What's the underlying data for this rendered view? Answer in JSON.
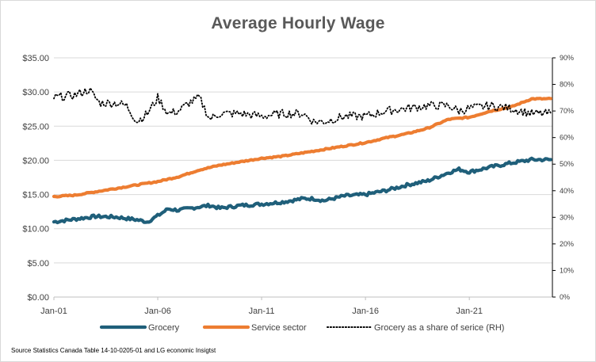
{
  "chart_data": {
    "type": "line",
    "title": "Average Hourly Wage",
    "x_tick_labels": [
      "Jan-01",
      "Jan-06",
      "Jan-11",
      "Jan-16",
      "Jan-21"
    ],
    "x_range": [
      "Jan-01",
      "Dec-24"
    ],
    "y_left": {
      "ticks": [
        "$0.00",
        "$5.00",
        "$10.00",
        "$15.00",
        "$20.00",
        "$25.00",
        "$30.00",
        "$35.00"
      ],
      "ylim": [
        0,
        35
      ]
    },
    "y_right": {
      "ticks": [
        "0%",
        "10%",
        "20%",
        "30%",
        "40%",
        "50%",
        "60%",
        "70%",
        "80%",
        "90%"
      ],
      "ylim": [
        0,
        90
      ]
    },
    "series": [
      {
        "name": "Grocery",
        "axis": "left",
        "color": "#1f5f7a",
        "style": "solid",
        "points": [
          [
            2001,
            11.0
          ],
          [
            2002,
            11.4
          ],
          [
            2003,
            11.8
          ],
          [
            2004,
            11.7
          ],
          [
            2005,
            11.3
          ],
          [
            2005.5,
            11.0
          ],
          [
            2006,
            11.9
          ],
          [
            2006.5,
            12.9
          ],
          [
            2007,
            12.7
          ],
          [
            2008,
            13.2
          ],
          [
            2008.5,
            13.4
          ],
          [
            2009,
            13.0
          ],
          [
            2010,
            13.4
          ],
          [
            2011,
            13.6
          ],
          [
            2012,
            13.9
          ],
          [
            2013,
            14.4
          ],
          [
            2013.5,
            14.4
          ],
          [
            2014,
            14.1
          ],
          [
            2015,
            14.8
          ],
          [
            2016,
            15.0
          ],
          [
            2017,
            15.6
          ],
          [
            2018,
            16.4
          ],
          [
            2019,
            17.0
          ],
          [
            2020,
            18.2
          ],
          [
            2020.5,
            18.7
          ],
          [
            2021,
            18.3
          ],
          [
            2022,
            19.0
          ],
          [
            2023,
            19.6
          ],
          [
            2024,
            20.1
          ]
        ]
      },
      {
        "name": "Service sector",
        "axis": "left",
        "color": "#ed7d31",
        "style": "solid",
        "points": [
          [
            2001,
            14.7
          ],
          [
            2002,
            14.9
          ],
          [
            2003,
            15.4
          ],
          [
            2004,
            15.9
          ],
          [
            2005,
            16.4
          ],
          [
            2006,
            16.9
          ],
          [
            2007,
            17.6
          ],
          [
            2008,
            18.6
          ],
          [
            2009,
            19.3
          ],
          [
            2010,
            19.8
          ],
          [
            2011,
            20.3
          ],
          [
            2012,
            20.6
          ],
          [
            2013,
            21.1
          ],
          [
            2014,
            21.6
          ],
          [
            2015,
            22.1
          ],
          [
            2016,
            22.6
          ],
          [
            2017,
            23.3
          ],
          [
            2018,
            23.9
          ],
          [
            2019,
            24.7
          ],
          [
            2020,
            26.0
          ],
          [
            2021,
            26.3
          ],
          [
            2022,
            27.2
          ],
          [
            2023,
            27.8
          ],
          [
            2024,
            29.0
          ]
        ]
      },
      {
        "name": "Grocery as a share of serice (RH)",
        "axis": "right",
        "color": "#000000",
        "style": "dotted",
        "points": [
          [
            2001,
            75
          ],
          [
            2002,
            76
          ],
          [
            2002.7,
            78
          ],
          [
            2003.2,
            73
          ],
          [
            2004,
            73
          ],
          [
            2004.5,
            72
          ],
          [
            2005,
            66
          ],
          [
            2005.5,
            69
          ],
          [
            2006,
            75
          ],
          [
            2006.5,
            69
          ],
          [
            2007,
            70
          ],
          [
            2007.5,
            73
          ],
          [
            2008,
            75
          ],
          [
            2008.5,
            67
          ],
          [
            2009,
            69
          ],
          [
            2010,
            69
          ],
          [
            2011,
            68
          ],
          [
            2012,
            69
          ],
          [
            2013,
            69
          ],
          [
            2013.5,
            66
          ],
          [
            2014,
            66
          ],
          [
            2015,
            68
          ],
          [
            2016,
            68
          ],
          [
            2017,
            70
          ],
          [
            2018,
            71
          ],
          [
            2019,
            72
          ],
          [
            2020,
            72
          ],
          [
            2020.5,
            70
          ],
          [
            2021,
            71
          ],
          [
            2022,
            72
          ],
          [
            2023,
            71
          ],
          [
            2024,
            69
          ]
        ]
      }
    ],
    "legend_position": "bottom",
    "source_note": "Source Statistics  Canada Table  14-10-0205-01  and LG economic Insigtst"
  }
}
